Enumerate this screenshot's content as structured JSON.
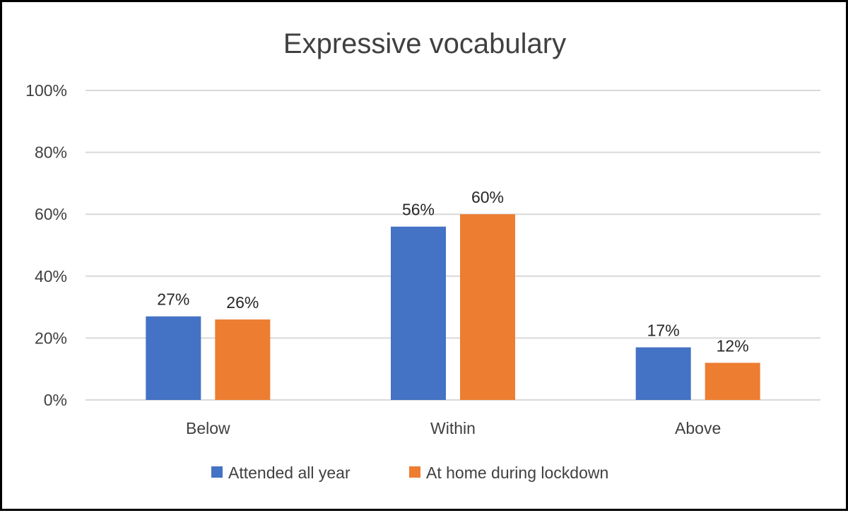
{
  "chart_data": {
    "type": "bar",
    "title": "Expressive vocabulary",
    "xlabel": "",
    "ylabel": "",
    "categories": [
      "Below",
      "Within",
      "Above"
    ],
    "series": [
      {
        "name": "Attended all year",
        "color": "#4472C4",
        "values": [
          27,
          56,
          17
        ],
        "labels": [
          "27%",
          "56%",
          "17%"
        ]
      },
      {
        "name": "At home during lockdown",
        "color": "#ED7D31",
        "values": [
          26,
          60,
          12
        ],
        "labels": [
          "26%",
          "60%",
          "12%"
        ]
      }
    ],
    "ylim": [
      0,
      100
    ],
    "yticks": [
      0,
      20,
      40,
      60,
      80,
      100
    ],
    "ytick_labels": [
      "0%",
      "20%",
      "40%",
      "60%",
      "80%",
      "100%"
    ],
    "grid": true,
    "legend": "bottom",
    "gridline_color": "#D9D9D9"
  }
}
